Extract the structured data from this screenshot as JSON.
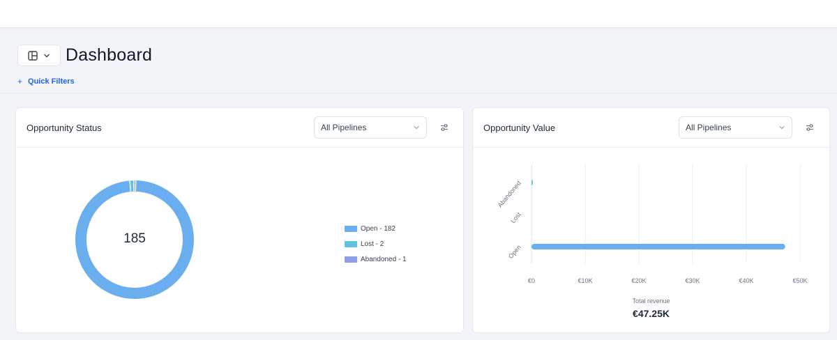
{
  "header": {
    "title": "Dashboard"
  },
  "quick_filters": {
    "label": "Quick Filters"
  },
  "status_card": {
    "title": "Opportunity Status",
    "pipeline_select": "All Pipelines",
    "total": "185",
    "legend": [
      {
        "label": "Open - 182",
        "color": "#6aaef0"
      },
      {
        "label": "Lost - 2",
        "color": "#5ec3e0"
      },
      {
        "label": "Abandoned - 1",
        "color": "#8d9de8"
      }
    ]
  },
  "value_card": {
    "title": "Opportunity Value",
    "pipeline_select": "All Pipelines",
    "revenue_label": "Total revenue",
    "revenue_value": "€47.25K"
  },
  "chart_data": [
    {
      "type": "pie",
      "categories": [
        "Open",
        "Lost",
        "Abandoned"
      ],
      "values": [
        182,
        2,
        1
      ],
      "colors": [
        "#6aaef0",
        "#5ec3e0",
        "#8d9de8"
      ],
      "legend": "right"
    },
    {
      "type": "bar",
      "orientation": "horizontal",
      "categories": [
        "Abandoned",
        "Lost",
        "Open"
      ],
      "values": [
        50,
        0,
        47250
      ],
      "colors": [
        "#5ec3e0",
        "#5ec3e0",
        "#6aaef0"
      ],
      "xlim": [
        0,
        50000
      ],
      "xticks": [
        "€0",
        "€10K",
        "€20K",
        "€30K",
        "€40K",
        "€50K"
      ],
      "grid": true
    }
  ]
}
